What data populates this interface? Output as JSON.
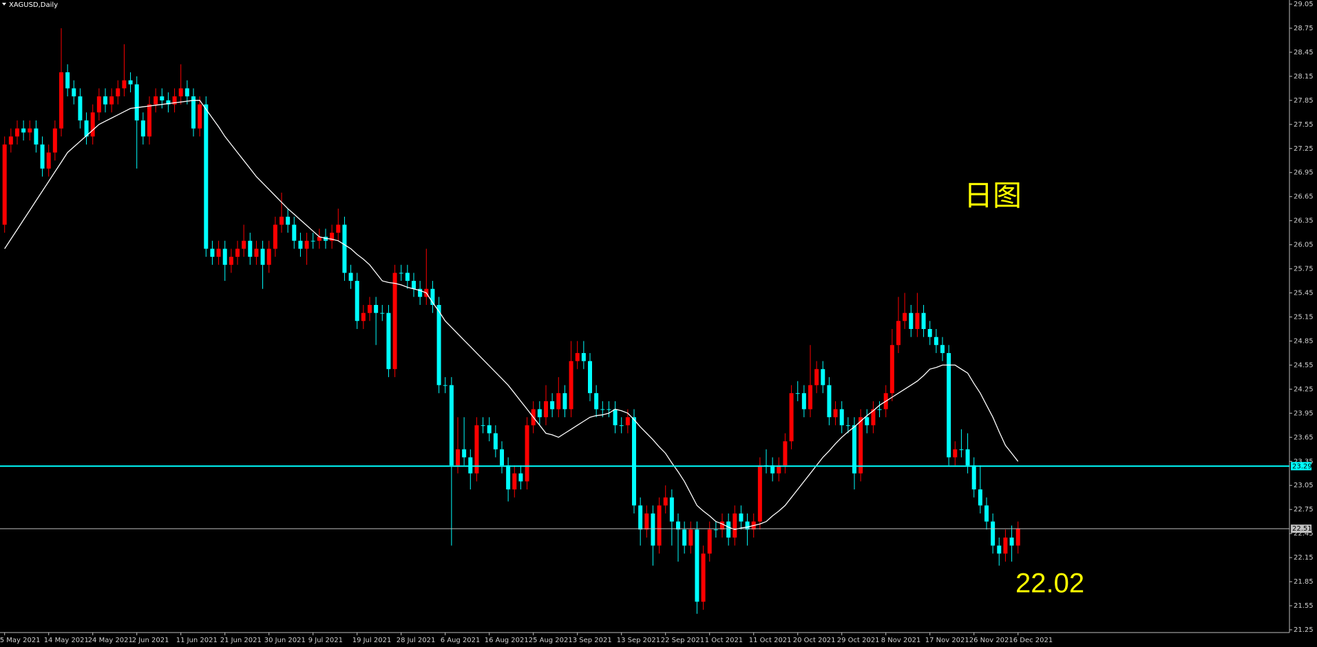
{
  "chart_data": {
    "type": "candlestick",
    "title": "XAGUSD,Daily",
    "background": "#000000",
    "up_color": "#ff0000",
    "down_color": "#00ffff",
    "categories": [
      "5 May 2021",
      null,
      null,
      null,
      null,
      null,
      null,
      "14 May 2021",
      null,
      null,
      null,
      null,
      null,
      null,
      "24 May 2021",
      null,
      null,
      null,
      null,
      null,
      null,
      "2 Jun 2021",
      null,
      null,
      null,
      null,
      null,
      null,
      "11 Jun 2021",
      null,
      null,
      null,
      null,
      null,
      null,
      "21 Jun 2021",
      null,
      null,
      null,
      null,
      null,
      null,
      "30 Jun 2021",
      null,
      null,
      null,
      null,
      null,
      null,
      "9 Jul 2021",
      null,
      null,
      null,
      null,
      null,
      null,
      "19 Jul 2021",
      null,
      null,
      null,
      null,
      null,
      null,
      "28 Jul 2021",
      null,
      null,
      null,
      null,
      null,
      null,
      "6 Aug 2021",
      null,
      null,
      null,
      null,
      null,
      null,
      "16 Aug 2021",
      null,
      null,
      null,
      null,
      null,
      null,
      "25 Aug 2021",
      null,
      null,
      null,
      null,
      null,
      null,
      "3 Sep 2021",
      null,
      null,
      null,
      null,
      null,
      null,
      "13 Sep 2021",
      null,
      null,
      null,
      null,
      null,
      null,
      "22 Sep 2021",
      null,
      null,
      null,
      null,
      null,
      null,
      "1 Oct 2021",
      null,
      null,
      null,
      null,
      null,
      null,
      "11 Oct 2021",
      null,
      null,
      null,
      null,
      null,
      null,
      "20 Oct 2021",
      null,
      null,
      null,
      null,
      null,
      null,
      "29 Oct 2021",
      null,
      null,
      null,
      null,
      null,
      null,
      "8 Nov 2021",
      null,
      null,
      null,
      null,
      null,
      null,
      "17 Nov 2021",
      null,
      null,
      null,
      null,
      null,
      null,
      "26 Nov 2021",
      null,
      null,
      null,
      null,
      null,
      null,
      "6 Dec 2021"
    ],
    "open": [
      26.3,
      27.3,
      27.4,
      27.5,
      27.45,
      27.5,
      27.3,
      27.0,
      27.2,
      27.5,
      28.2,
      28.0,
      27.9,
      27.6,
      27.4,
      27.7,
      27.9,
      27.8,
      27.9,
      28.0,
      28.1,
      28.05,
      27.6,
      27.4,
      27.8,
      27.9,
      27.85,
      27.8,
      27.9,
      28.0,
      27.9,
      27.5,
      27.8,
      26.0,
      25.9,
      26.0,
      25.8,
      25.9,
      26.0,
      26.1,
      25.9,
      26.0,
      25.8,
      26.0,
      26.3,
      26.4,
      26.3,
      26.1,
      26.0,
      26.1,
      26.1,
      26.15,
      26.1,
      26.2,
      26.3,
      25.7,
      25.6,
      25.1,
      25.2,
      25.3,
      25.2,
      25.2,
      24.5,
      25.7,
      25.7,
      25.6,
      25.5,
      25.4,
      25.5,
      25.3,
      24.3,
      24.3,
      23.3,
      23.5,
      23.4,
      23.2,
      23.8,
      23.8,
      23.7,
      23.5,
      23.3,
      23.0,
      23.2,
      23.1,
      23.8,
      24.0,
      23.9,
      24.1,
      24.0,
      24.2,
      24.0,
      24.6,
      24.7,
      24.6,
      24.2,
      24.0,
      24.0,
      24.0,
      23.8,
      23.8,
      23.9,
      22.8,
      22.5,
      22.7,
      22.3,
      22.8,
      22.9,
      22.6,
      22.5,
      22.3,
      22.5,
      21.6,
      22.2,
      22.5,
      22.5,
      22.6,
      22.4,
      22.7,
      22.6,
      22.5,
      22.6,
      23.3,
      23.3,
      23.2,
      23.3,
      23.6,
      24.2,
      24.2,
      24.0,
      24.3,
      24.5,
      24.3,
      23.9,
      24.0,
      23.8,
      23.8,
      23.2,
      23.9,
      23.8,
      24.0,
      24.0,
      24.2,
      24.8,
      25.1,
      25.2,
      25.0,
      25.2,
      25.0,
      24.9,
      24.8,
      24.7,
      23.4,
      23.5,
      23.5,
      23.3,
      23.0,
      22.8,
      22.6,
      22.3,
      22.2,
      22.4,
      22.3
    ],
    "high": [
      27.4,
      27.5,
      27.6,
      27.6,
      27.6,
      27.6,
      27.4,
      27.3,
      27.6,
      28.75,
      28.3,
      28.1,
      28.0,
      27.7,
      27.8,
      28.0,
      28.0,
      28.0,
      28.1,
      28.55,
      28.2,
      28.15,
      27.7,
      27.9,
      28.0,
      28.0,
      27.95,
      28.0,
      28.3,
      28.1,
      28.0,
      27.9,
      27.9,
      26.1,
      26.1,
      26.1,
      26.0,
      26.1,
      26.3,
      26.2,
      26.1,
      26.1,
      26.1,
      26.4,
      26.7,
      26.5,
      26.4,
      26.2,
      26.2,
      26.2,
      26.25,
      26.25,
      26.3,
      26.5,
      26.4,
      25.8,
      25.7,
      25.3,
      25.4,
      25.4,
      25.3,
      25.3,
      25.8,
      25.8,
      25.8,
      25.7,
      25.6,
      26.0,
      25.6,
      25.4,
      24.4,
      24.4,
      23.9,
      23.9,
      23.5,
      23.9,
      23.9,
      23.9,
      23.8,
      23.6,
      23.4,
      23.3,
      23.3,
      23.9,
      24.1,
      24.1,
      24.3,
      24.2,
      24.4,
      24.3,
      24.85,
      24.85,
      24.85,
      24.7,
      24.3,
      24.1,
      24.1,
      24.1,
      23.9,
      24.0,
      24.0,
      22.9,
      22.8,
      22.8,
      22.9,
      23.05,
      23.0,
      22.7,
      22.6,
      22.6,
      22.6,
      22.3,
      22.6,
      22.6,
      22.7,
      22.7,
      22.8,
      22.8,
      22.7,
      22.7,
      23.4,
      23.5,
      23.4,
      23.4,
      23.7,
      24.3,
      24.35,
      24.3,
      24.8,
      24.6,
      24.6,
      24.4,
      24.1,
      24.1,
      23.9,
      23.9,
      24.0,
      24.0,
      24.1,
      24.1,
      24.3,
      25.0,
      25.4,
      25.45,
      25.3,
      25.45,
      25.3,
      25.1,
      25.0,
      24.9,
      24.8,
      23.6,
      23.75,
      23.7,
      23.4,
      23.3,
      22.9,
      22.7,
      22.4,
      22.5,
      22.55,
      22.6
    ],
    "low": [
      26.2,
      27.2,
      27.3,
      27.35,
      27.35,
      27.2,
      26.9,
      26.9,
      27.1,
      27.4,
      27.9,
      27.8,
      27.5,
      27.3,
      27.3,
      27.6,
      27.7,
      27.7,
      27.8,
      27.9,
      27.95,
      27.0,
      27.3,
      27.3,
      27.7,
      27.75,
      27.7,
      27.7,
      27.8,
      27.8,
      27.4,
      27.4,
      25.9,
      25.8,
      25.8,
      25.6,
      25.7,
      25.8,
      25.9,
      25.8,
      25.8,
      25.5,
      25.7,
      25.9,
      26.2,
      26.2,
      26.0,
      25.9,
      25.8,
      26.0,
      26.0,
      26.0,
      26.0,
      26.1,
      25.6,
      25.5,
      25.0,
      25.0,
      25.1,
      24.8,
      25.1,
      24.4,
      24.4,
      25.6,
      25.5,
      25.4,
      25.3,
      25.3,
      25.2,
      24.2,
      24.2,
      22.3,
      23.2,
      23.3,
      23.0,
      23.1,
      23.7,
      23.6,
      23.4,
      23.2,
      22.85,
      22.9,
      23.0,
      23.0,
      23.7,
      23.8,
      23.8,
      23.9,
      23.9,
      23.9,
      23.9,
      24.5,
      24.5,
      24.1,
      23.9,
      23.9,
      23.9,
      23.7,
      23.7,
      23.7,
      22.7,
      22.3,
      22.4,
      22.05,
      22.2,
      22.7,
      22.3,
      22.1,
      22.2,
      22.2,
      21.45,
      21.5,
      22.1,
      22.4,
      22.4,
      22.3,
      22.3,
      22.5,
      22.3,
      22.4,
      22.5,
      23.2,
      23.1,
      23.1,
      23.2,
      23.5,
      24.1,
      23.9,
      23.9,
      24.2,
      24.2,
      23.8,
      23.8,
      23.7,
      23.7,
      23.0,
      23.1,
      23.7,
      23.7,
      23.9,
      23.9,
      24.1,
      24.7,
      25.0,
      24.9,
      24.9,
      24.9,
      24.8,
      24.7,
      24.6,
      23.3,
      23.3,
      23.4,
      23.2,
      22.9,
      22.7,
      22.5,
      22.2,
      22.05,
      22.1,
      22.1,
      22.2
    ],
    "close": [
      27.3,
      27.4,
      27.5,
      27.45,
      27.5,
      27.3,
      27.0,
      27.2,
      27.5,
      28.2,
      28.0,
      27.9,
      27.6,
      27.4,
      27.7,
      27.9,
      27.8,
      27.9,
      28.0,
      28.1,
      28.05,
      27.6,
      27.4,
      27.8,
      27.9,
      27.85,
      27.8,
      27.9,
      28.0,
      27.9,
      27.5,
      27.8,
      26.0,
      25.9,
      26.0,
      25.8,
      25.9,
      26.0,
      26.1,
      25.9,
      26.0,
      25.8,
      26.0,
      26.3,
      26.4,
      26.3,
      26.1,
      26.0,
      26.1,
      26.1,
      26.15,
      26.1,
      26.2,
      26.3,
      25.7,
      25.6,
      25.1,
      25.2,
      25.3,
      25.2,
      25.2,
      24.5,
      25.7,
      25.7,
      25.6,
      25.5,
      25.4,
      25.5,
      25.3,
      24.3,
      24.3,
      23.3,
      23.5,
      23.4,
      23.2,
      23.8,
      23.8,
      23.7,
      23.5,
      23.3,
      23.0,
      23.2,
      23.1,
      23.8,
      24.0,
      23.9,
      24.1,
      24.0,
      24.2,
      24.0,
      24.6,
      24.7,
      24.6,
      24.2,
      24.0,
      24.0,
      24.0,
      23.8,
      23.8,
      23.9,
      22.8,
      22.5,
      22.7,
      22.3,
      22.8,
      22.9,
      22.6,
      22.5,
      22.3,
      22.5,
      21.6,
      22.2,
      22.5,
      22.5,
      22.6,
      22.4,
      22.7,
      22.6,
      22.5,
      22.6,
      23.3,
      23.3,
      23.2,
      23.3,
      23.6,
      24.2,
      24.2,
      24.0,
      24.3,
      24.5,
      24.3,
      23.9,
      24.0,
      23.8,
      23.8,
      23.2,
      23.9,
      23.8,
      24.0,
      24.0,
      24.2,
      24.8,
      25.1,
      25.2,
      25.0,
      25.2,
      25.0,
      24.9,
      24.8,
      24.7,
      23.4,
      23.5,
      23.5,
      23.3,
      23.0,
      22.8,
      22.6,
      22.3,
      22.2,
      22.4,
      22.3,
      22.51
    ],
    "ma": {
      "color": "#ffffff",
      "values": [
        26.0,
        26.12,
        26.24,
        26.36,
        26.48,
        26.6,
        26.72,
        26.84,
        26.96,
        27.08,
        27.2,
        27.27,
        27.34,
        27.41,
        27.48,
        27.55,
        27.59,
        27.63,
        27.67,
        27.71,
        27.75,
        27.76,
        27.77,
        27.78,
        27.79,
        27.8,
        27.81,
        27.82,
        27.83,
        27.84,
        27.85,
        27.85,
        27.74,
        27.63,
        27.52,
        27.4,
        27.3,
        27.2,
        27.1,
        27.0,
        26.9,
        26.82,
        26.74,
        26.66,
        26.58,
        26.5,
        26.43,
        26.36,
        26.29,
        26.22,
        26.15,
        26.13,
        26.12,
        26.1,
        26.05,
        26.0,
        25.93,
        25.87,
        25.8,
        25.7,
        25.6,
        25.58,
        25.57,
        25.55,
        25.52,
        25.5,
        25.48,
        25.45,
        25.33,
        25.22,
        25.1,
        25.02,
        24.94,
        24.86,
        24.78,
        24.7,
        24.62,
        24.54,
        24.46,
        24.38,
        24.3,
        24.2,
        24.1,
        24.0,
        23.9,
        23.8,
        23.7,
        23.68,
        23.65,
        23.7,
        23.75,
        23.8,
        23.85,
        23.9,
        23.92,
        23.93,
        23.95,
        24.0,
        23.98,
        23.95,
        23.87,
        23.78,
        23.7,
        23.62,
        23.53,
        23.45,
        23.33,
        23.22,
        23.1,
        22.95,
        22.8,
        22.73,
        22.67,
        22.6,
        22.57,
        22.53,
        22.5,
        22.52,
        22.53,
        22.55,
        22.57,
        22.6,
        22.67,
        22.73,
        22.8,
        22.9,
        23.0,
        23.1,
        23.2,
        23.3,
        23.4,
        23.48,
        23.57,
        23.65,
        23.72,
        23.78,
        23.85,
        23.92,
        23.98,
        24.05,
        24.1,
        24.15,
        24.2,
        24.25,
        24.3,
        24.35,
        24.42,
        24.5,
        24.52,
        24.55,
        24.55,
        24.55,
        24.5,
        24.45,
        24.32,
        24.2,
        24.05,
        23.9,
        23.72,
        23.55,
        23.45,
        23.35
      ]
    },
    "hlines": [
      {
        "value": 23.29,
        "color": "#00ffff"
      },
      {
        "value": 22.51,
        "color": "#c0c0c0"
      }
    ],
    "ylim": [
      21.25,
      29.05
    ],
    "yticks": [
      21.25,
      21.55,
      21.85,
      22.15,
      22.45,
      22.75,
      23.05,
      23.35,
      23.65,
      23.95,
      24.25,
      24.55,
      24.85,
      25.15,
      25.45,
      25.75,
      26.05,
      26.35,
      26.65,
      26.95,
      27.25,
      27.55,
      27.85,
      28.15,
      28.45,
      28.75,
      29.05
    ],
    "annotations": [
      {
        "text": "日图",
        "color": "#ffff00"
      },
      {
        "text": "22.02",
        "color": "#ffff00"
      }
    ]
  }
}
